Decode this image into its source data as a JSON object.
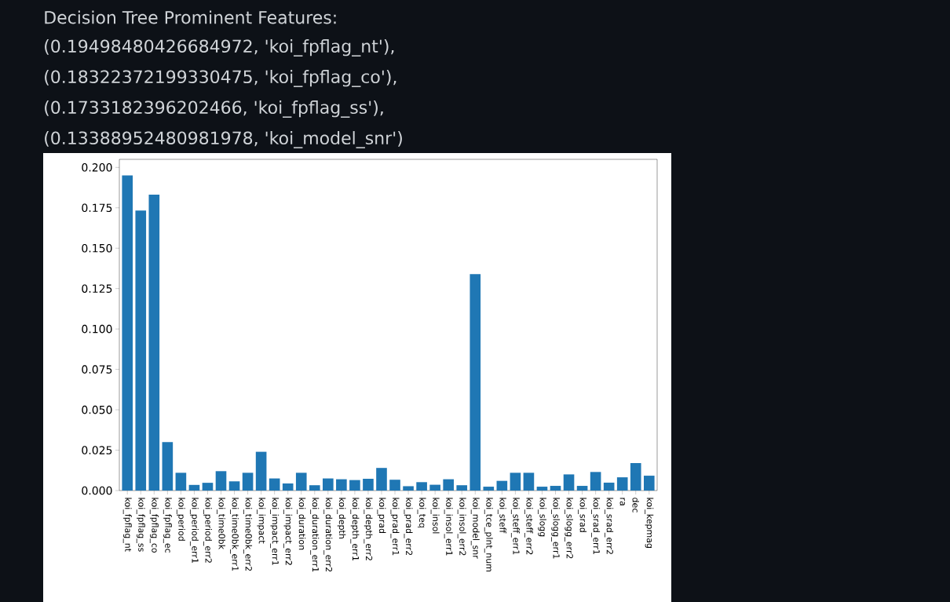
{
  "chart_data": {
    "type": "bar",
    "title": "Decision Tree Prominent Features:",
    "annotations": [
      "(0.19498480426684972, 'koi_fpflag_nt'),",
      "(0.18322372199330475, 'koi_fpflag_co'),",
      "(0.1733182396202466, 'koi_fpflag_ss'),",
      "(0.13388952480981978, 'koi_model_snr')"
    ],
    "categories": [
      "koi_fpflag_nt",
      "koi_fpflag_ss",
      "koi_fpflag_co",
      "koi_fpflag_ec",
      "koi_period",
      "koi_period_err1",
      "koi_period_err2",
      "koi_time0bk",
      "koi_time0bk_err1",
      "koi_time0bk_err2",
      "koi_impact",
      "koi_impact_err1",
      "koi_impact_err2",
      "koi_duration",
      "koi_duration_err1",
      "koi_duration_err2",
      "koi_depth",
      "koi_depth_err1",
      "koi_depth_err2",
      "koi_prad",
      "koi_prad_err1",
      "koi_prad_err2",
      "koi_teq",
      "koi_insol",
      "koi_insol_err1",
      "koi_insol_err2",
      "koi_model_snr",
      "koi_tce_plnt_num",
      "koi_steff",
      "koi_steff_err1",
      "koi_steff_err2",
      "koi_slogg",
      "koi_slogg_err1",
      "koi_slogg_err2",
      "koi_srad",
      "koi_srad_err1",
      "koi_srad_err2",
      "ra",
      "dec",
      "koi_kepmag"
    ],
    "values": [
      0.195,
      0.1733,
      0.1832,
      0.03,
      0.011,
      0.0035,
      0.0048,
      0.012,
      0.0057,
      0.011,
      0.024,
      0.0075,
      0.0044,
      0.011,
      0.0033,
      0.0075,
      0.007,
      0.0065,
      0.0073,
      0.014,
      0.0067,
      0.0027,
      0.0052,
      0.0036,
      0.007,
      0.0033,
      0.1339,
      0.0024,
      0.006,
      0.011,
      0.011,
      0.0024,
      0.0029,
      0.01,
      0.0029,
      0.0115,
      0.0049,
      0.0082,
      0.017,
      0.0092
    ],
    "color": "#1f77b4",
    "ylim": [
      0,
      0.205
    ],
    "yticks": [
      {
        "value": 0,
        "label": "0.000"
      },
      {
        "value": 0.025,
        "label": "0.025"
      },
      {
        "value": 0.05,
        "label": "0.050"
      },
      {
        "value": 0.075,
        "label": "0.075"
      },
      {
        "value": 0.1,
        "label": "0.100"
      },
      {
        "value": 0.125,
        "label": "0.125"
      },
      {
        "value": 0.15,
        "label": "0.150"
      },
      {
        "value": 0.175,
        "label": "0.175"
      },
      {
        "value": 0.2,
        "label": "0.200"
      }
    ]
  }
}
